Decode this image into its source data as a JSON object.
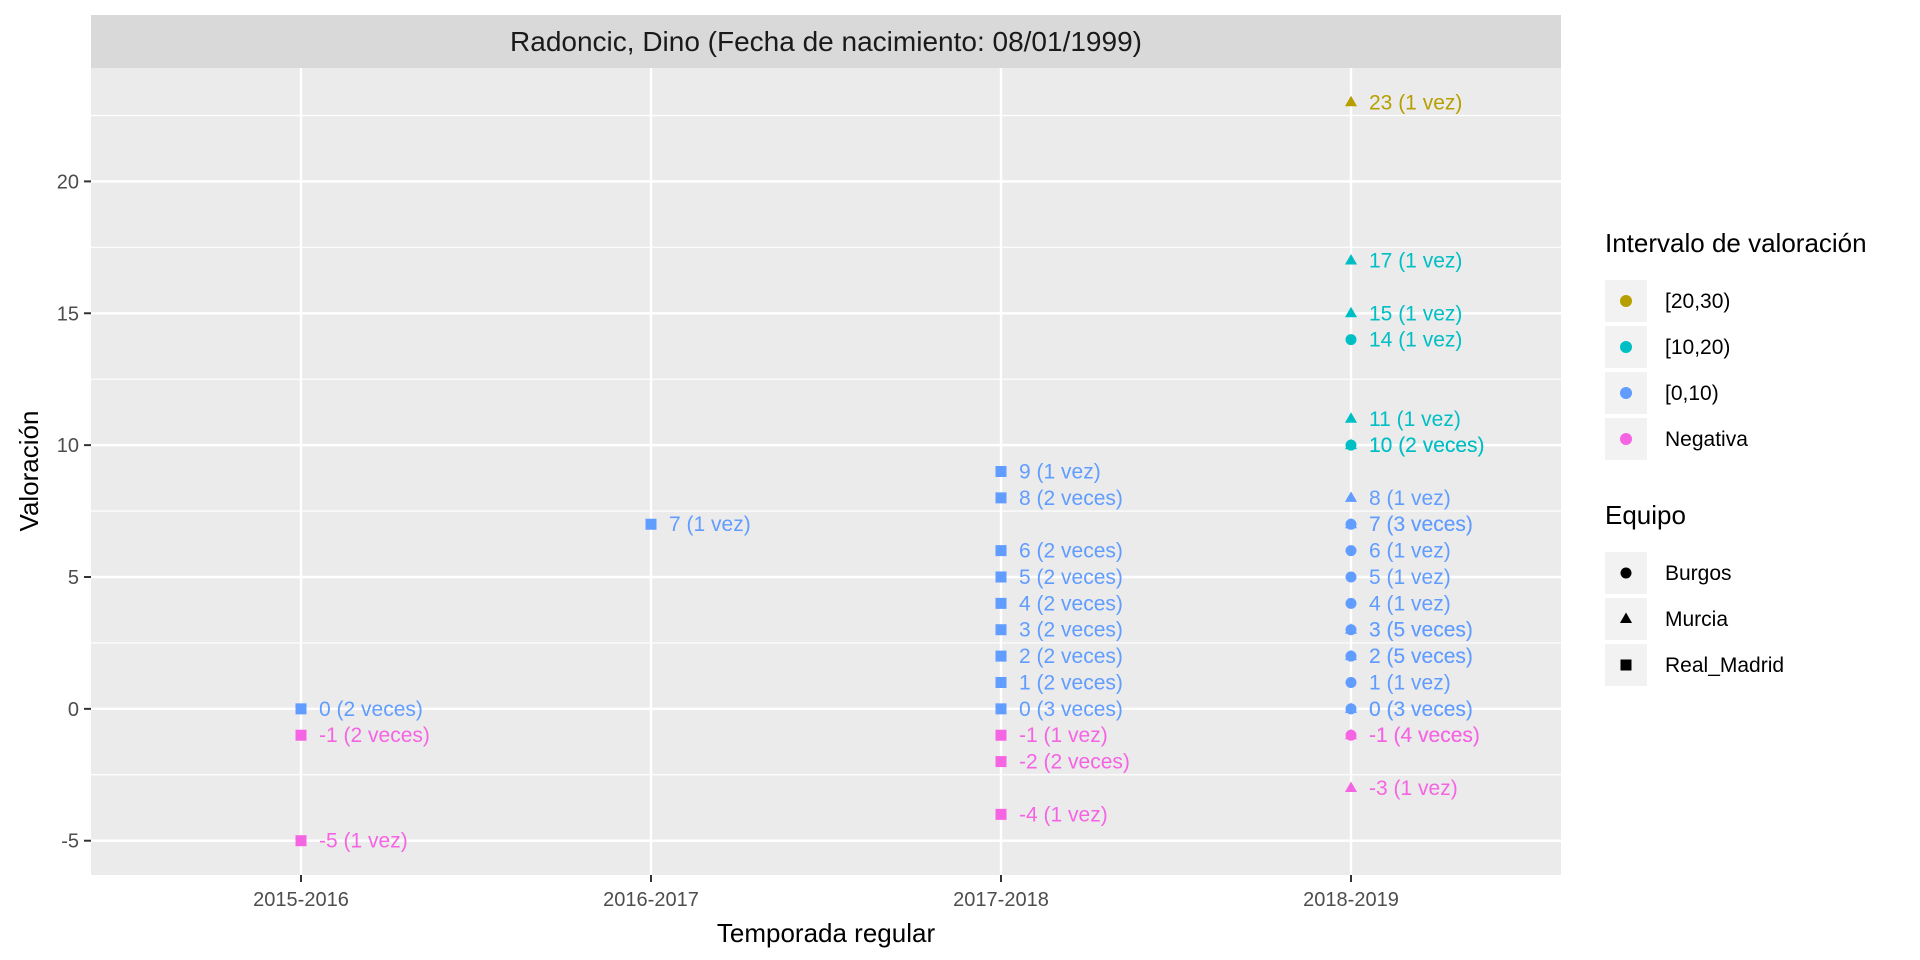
{
  "chart_data": {
    "type": "scatter",
    "title": "Radoncic, Dino (Fecha de nacimiento: 08/01/1999)",
    "xlabel": "Temporada regular",
    "ylabel": "Valoración",
    "categories": [
      "2015-2016",
      "2016-2017",
      "2017-2018",
      "2018-2019"
    ],
    "ylim": [
      -6.3,
      24.3
    ],
    "yticks": [
      -5,
      0,
      5,
      10,
      15,
      20
    ],
    "ytick_labels": [
      "-5",
      "0",
      "5",
      "10",
      "15",
      "20"
    ],
    "grid": true,
    "legend_position": "right",
    "legends": [
      {
        "title": "Intervalo de valoración",
        "items": [
          {
            "key": "high",
            "label": "[20,30)",
            "color": "#B79F00"
          },
          {
            "key": "mid",
            "label": "[10,20)",
            "color": "#00BFC4"
          },
          {
            "key": "low",
            "label": "[0,10)",
            "color": "#619CFF"
          },
          {
            "key": "neg",
            "label": "Negativa",
            "color": "#F564E3"
          }
        ]
      },
      {
        "title": "Equipo",
        "items": [
          {
            "key": "Burgos",
            "label": "Burgos",
            "shape": "circle"
          },
          {
            "key": "Murcia",
            "label": "Murcia",
            "shape": "triangle"
          },
          {
            "key": "Real_Madrid",
            "label": "Real_Madrid",
            "shape": "square"
          }
        ]
      }
    ],
    "points": [
      {
        "x": "2015-2016",
        "y": 0,
        "interval": "[0,10)",
        "team": "Real_Madrid",
        "label": "0 (2 veces)"
      },
      {
        "x": "2015-2016",
        "y": -1,
        "interval": "Negativa",
        "team": "Real_Madrid",
        "label": "-1 (2 veces)"
      },
      {
        "x": "2015-2016",
        "y": -5,
        "interval": "Negativa",
        "team": "Real_Madrid",
        "label": "-5 (1 vez)"
      },
      {
        "x": "2016-2017",
        "y": 7,
        "interval": "[0,10)",
        "team": "Real_Madrid",
        "label": "7 (1 vez)"
      },
      {
        "x": "2017-2018",
        "y": 9,
        "interval": "[0,10)",
        "team": "Real_Madrid",
        "label": "9 (1 vez)"
      },
      {
        "x": "2017-2018",
        "y": 8,
        "interval": "[0,10)",
        "team": "Real_Madrid",
        "label": "8 (2 veces)"
      },
      {
        "x": "2017-2018",
        "y": 6,
        "interval": "[0,10)",
        "team": "Real_Madrid",
        "label": "6 (2 veces)"
      },
      {
        "x": "2017-2018",
        "y": 5,
        "interval": "[0,10)",
        "team": "Real_Madrid",
        "label": "5 (2 veces)"
      },
      {
        "x": "2017-2018",
        "y": 4,
        "interval": "[0,10)",
        "team": "Real_Madrid",
        "label": "4 (2 veces)"
      },
      {
        "x": "2017-2018",
        "y": 3,
        "interval": "[0,10)",
        "team": "Real_Madrid",
        "label": "3 (2 veces)"
      },
      {
        "x": "2017-2018",
        "y": 2,
        "interval": "[0,10)",
        "team": "Real_Madrid",
        "label": "2 (2 veces)"
      },
      {
        "x": "2017-2018",
        "y": 1,
        "interval": "[0,10)",
        "team": "Real_Madrid",
        "label": "1 (2 veces)"
      },
      {
        "x": "2017-2018",
        "y": 0,
        "interval": "[0,10)",
        "team": "Real_Madrid",
        "label": "0 (3 veces)"
      },
      {
        "x": "2017-2018",
        "y": -1,
        "interval": "Negativa",
        "team": "Real_Madrid",
        "label": "-1 (1 vez)"
      },
      {
        "x": "2017-2018",
        "y": -2,
        "interval": "Negativa",
        "team": "Real_Madrid",
        "label": "-2 (2 veces)"
      },
      {
        "x": "2017-2018",
        "y": -4,
        "interval": "Negativa",
        "team": "Real_Madrid",
        "label": "-4 (1 vez)"
      },
      {
        "x": "2018-2019",
        "y": 23,
        "interval": "[20,30)",
        "team": "Murcia",
        "label": "23 (1 vez)"
      },
      {
        "x": "2018-2019",
        "y": 17,
        "interval": "[10,20)",
        "team": "Murcia",
        "label": "17 (1 vez)"
      },
      {
        "x": "2018-2019",
        "y": 15,
        "interval": "[10,20)",
        "team": "Murcia",
        "label": "15 (1 vez)"
      },
      {
        "x": "2018-2019",
        "y": 14,
        "interval": "[10,20)",
        "team": "Burgos",
        "label": "14 (1 vez)"
      },
      {
        "x": "2018-2019",
        "y": 11,
        "interval": "[10,20)",
        "team": "Murcia",
        "label": "11 (1 vez)"
      },
      {
        "x": "2018-2019",
        "y": 10,
        "interval": "[10,20)",
        "team": "Burgos",
        "label": "10 (2 veces)"
      },
      {
        "x": "2018-2019",
        "y": 10,
        "interval": "[10,20)",
        "team": "Murcia",
        "label": "10 (2 veces)"
      },
      {
        "x": "2018-2019",
        "y": 8,
        "interval": "[0,10)",
        "team": "Murcia",
        "label": "8 (1 vez)"
      },
      {
        "x": "2018-2019",
        "y": 7,
        "interval": "[0,10)",
        "team": "Murcia",
        "label": "7 (3 veces)"
      },
      {
        "x": "2018-2019",
        "y": 7,
        "interval": "[0,10)",
        "team": "Burgos",
        "label": "7 (3 veces)"
      },
      {
        "x": "2018-2019",
        "y": 6,
        "interval": "[0,10)",
        "team": "Burgos",
        "label": "6 (1 vez)"
      },
      {
        "x": "2018-2019",
        "y": 5,
        "interval": "[0,10)",
        "team": "Burgos",
        "label": "5 (1 vez)"
      },
      {
        "x": "2018-2019",
        "y": 4,
        "interval": "[0,10)",
        "team": "Burgos",
        "label": "4 (1 vez)"
      },
      {
        "x": "2018-2019",
        "y": 3,
        "interval": "[0,10)",
        "team": "Murcia",
        "label": "3 (5 veces)"
      },
      {
        "x": "2018-2019",
        "y": 3,
        "interval": "[0,10)",
        "team": "Burgos",
        "label": "3 (5 veces)"
      },
      {
        "x": "2018-2019",
        "y": 2,
        "interval": "[0,10)",
        "team": "Murcia",
        "label": "2 (5 veces)"
      },
      {
        "x": "2018-2019",
        "y": 2,
        "interval": "[0,10)",
        "team": "Burgos",
        "label": "2 (5 veces)"
      },
      {
        "x": "2018-2019",
        "y": 1,
        "interval": "[0,10)",
        "team": "Burgos",
        "label": "1 (1 vez)"
      },
      {
        "x": "2018-2019",
        "y": 0,
        "interval": "[0,10)",
        "team": "Murcia",
        "label": "0 (3 veces)"
      },
      {
        "x": "2018-2019",
        "y": 0,
        "interval": "[0,10)",
        "team": "Burgos",
        "label": "0 (3 veces)"
      },
      {
        "x": "2018-2019",
        "y": -1,
        "interval": "Negativa",
        "team": "Murcia",
        "label": "-1 (4 veces)"
      },
      {
        "x": "2018-2019",
        "y": -1,
        "interval": "Negativa",
        "team": "Burgos",
        "label": "-1 (4 veces)"
      },
      {
        "x": "2018-2019",
        "y": -3,
        "interval": "Negativa",
        "team": "Murcia",
        "label": "-3 (1 vez)"
      }
    ]
  }
}
